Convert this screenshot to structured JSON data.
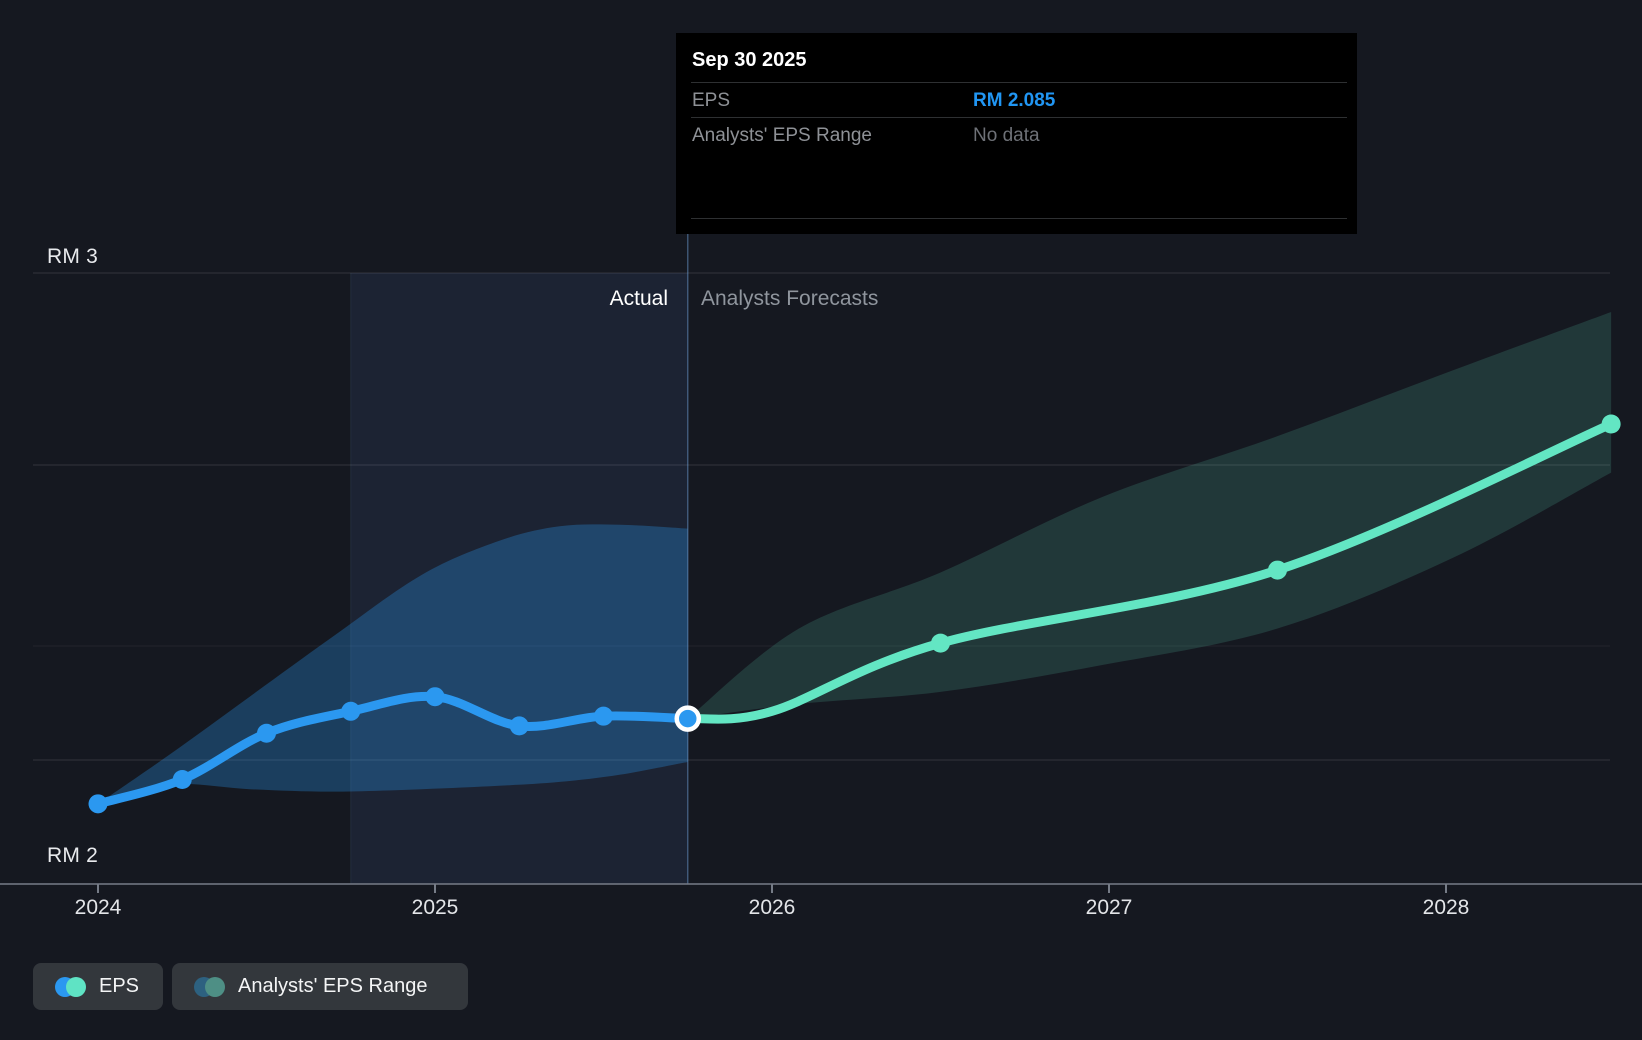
{
  "y_axis": {
    "top_label": "RM 3",
    "bottom_label": "RM 2"
  },
  "x_axis": {
    "ticks": [
      "2024",
      "2025",
      "2026",
      "2027",
      "2028"
    ]
  },
  "labels": {
    "actual": "Actual",
    "forecasts": "Analysts Forecasts"
  },
  "tooltip": {
    "title": "Sep 30 2025",
    "rows": [
      {
        "label": "EPS",
        "value": "RM 2.085"
      },
      {
        "label": "Analysts' EPS Range",
        "value": "No data"
      }
    ]
  },
  "legend": {
    "items": [
      {
        "label": "EPS"
      },
      {
        "label": "Analysts' EPS Range"
      }
    ]
  },
  "colors": {
    "background": "#151820",
    "eps_line_blue": "#2b98f0",
    "eps_fill_blue": "rgba(43,152,240,0.30)",
    "forecast_line_mint": "#63e6c3",
    "forecast_fill_mint": "rgba(100,227,195,0.16)",
    "tooltip_value_blue": "#2196f3",
    "legend_eps_dot_a": "#2b98f0",
    "legend_eps_dot_b": "#5fe3c4",
    "legend_range_dot_a": "#2d6180",
    "legend_range_dot_b": "#4e8f85",
    "gridline": "rgba(255,255,255,0.13)",
    "axis_line": "#767c87",
    "highlight_column": "rgba(100,160,255,0.085)",
    "divider_line": "rgba(110,160,215,0.45)"
  },
  "chart_data": {
    "type": "line",
    "currency": "RM",
    "ylabel_ticks": [
      "RM 3",
      "RM 2"
    ],
    "ylim": [
      1.8,
      3.05
    ],
    "x_ticks": [
      2024,
      2025,
      2026,
      2027,
      2028
    ],
    "actual_forecast_divider_x": 2025.75,
    "highlight_span": [
      2024.75,
      2025.75
    ],
    "legend_position": "bottom-left",
    "grid": "horizontal-only",
    "tooltip_point": {
      "date": "Sep 30 2025",
      "eps": 2.085,
      "analysts_eps_range": "No data"
    },
    "series": [
      {
        "name": "EPS (actual)",
        "x": [
          2024.0,
          2024.25,
          2024.5,
          2024.75,
          2025.0,
          2025.25,
          2025.5,
          2025.75
        ],
        "y": [
          1.91,
          1.96,
          2.055,
          2.1,
          2.13,
          2.07,
          2.09,
          2.085
        ],
        "markers": "all"
      },
      {
        "name": "EPS (analysts forecast)",
        "x": [
          2025.75,
          2026.0,
          2026.5,
          2027.5,
          2028.49
        ],
        "y": [
          2.085,
          2.1,
          2.24,
          2.39,
          2.69
        ],
        "marker_x": [
          2026.5,
          2027.5,
          2028.49
        ]
      }
    ],
    "bands": [
      {
        "name": "EPS band (actual period)",
        "x": [
          2024.0,
          2024.21,
          2024.45,
          2024.69,
          2024.96,
          2025.19,
          2025.37,
          2025.55,
          2025.75
        ],
        "high": [
          1.91,
          2.01,
          2.13,
          2.25,
          2.38,
          2.45,
          2.48,
          2.483,
          2.475
        ],
        "low": [
          1.91,
          1.95,
          1.94,
          1.935,
          1.94,
          1.947,
          1.955,
          1.97,
          1.996
        ]
      },
      {
        "name": "Analysts' EPS range (forecast)",
        "x": [
          2025.75,
          2026.08,
          2026.5,
          2026.98,
          2027.5,
          2028.02,
          2028.49
        ],
        "high": [
          2.085,
          2.27,
          2.385,
          2.54,
          2.665,
          2.8,
          2.92
        ],
        "low": [
          2.085,
          2.115,
          2.14,
          2.195,
          2.27,
          2.415,
          2.59
        ]
      }
    ]
  }
}
